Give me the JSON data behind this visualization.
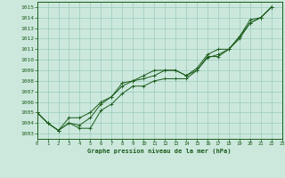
{
  "xlabel": "Graphe pression niveau de la mer (hPa)",
  "x_ticks": [
    0,
    1,
    2,
    3,
    4,
    5,
    6,
    7,
    8,
    9,
    10,
    11,
    12,
    13,
    14,
    15,
    16,
    17,
    18,
    19,
    20,
    21,
    22,
    23
  ],
  "ylim": [
    1002.5,
    1015.5
  ],
  "xlim": [
    0,
    23
  ],
  "y_ticks": [
    1003,
    1004,
    1005,
    1006,
    1007,
    1008,
    1009,
    1010,
    1011,
    1012,
    1013,
    1014,
    1015
  ],
  "bg_color": "#cce8dd",
  "grid_color": "#99ccbb",
  "line_color": "#1a5c1a",
  "line1": [
    1005.0,
    1004.0,
    1003.3,
    1004.0,
    1003.5,
    1003.5,
    1005.2,
    1005.8,
    1006.8,
    1007.5,
    1007.5,
    1008.0,
    1008.2,
    1008.2,
    1008.2,
    1009.0,
    1010.3,
    1010.3,
    1011.0,
    1012.0,
    1013.5,
    1014.0,
    1015.0
  ],
  "line2": [
    1005.0,
    1004.0,
    1003.3,
    1004.0,
    1003.8,
    1004.5,
    1005.8,
    1006.5,
    1007.8,
    1008.0,
    1008.2,
    1008.5,
    1009.0,
    1009.0,
    1008.5,
    1009.0,
    1010.2,
    1010.5,
    1011.0,
    1012.2,
    1013.8,
    1014.0,
    1015.0
  ],
  "line3": [
    1005.0,
    1004.0,
    1003.3,
    1004.5,
    1004.5,
    1005.0,
    1006.0,
    1006.5,
    1007.5,
    1008.0,
    1008.5,
    1009.0,
    1009.0,
    1009.0,
    1008.5,
    1009.2,
    1010.5,
    1011.0,
    1011.0,
    1012.2,
    1013.5,
    1014.0,
    1015.0
  ]
}
